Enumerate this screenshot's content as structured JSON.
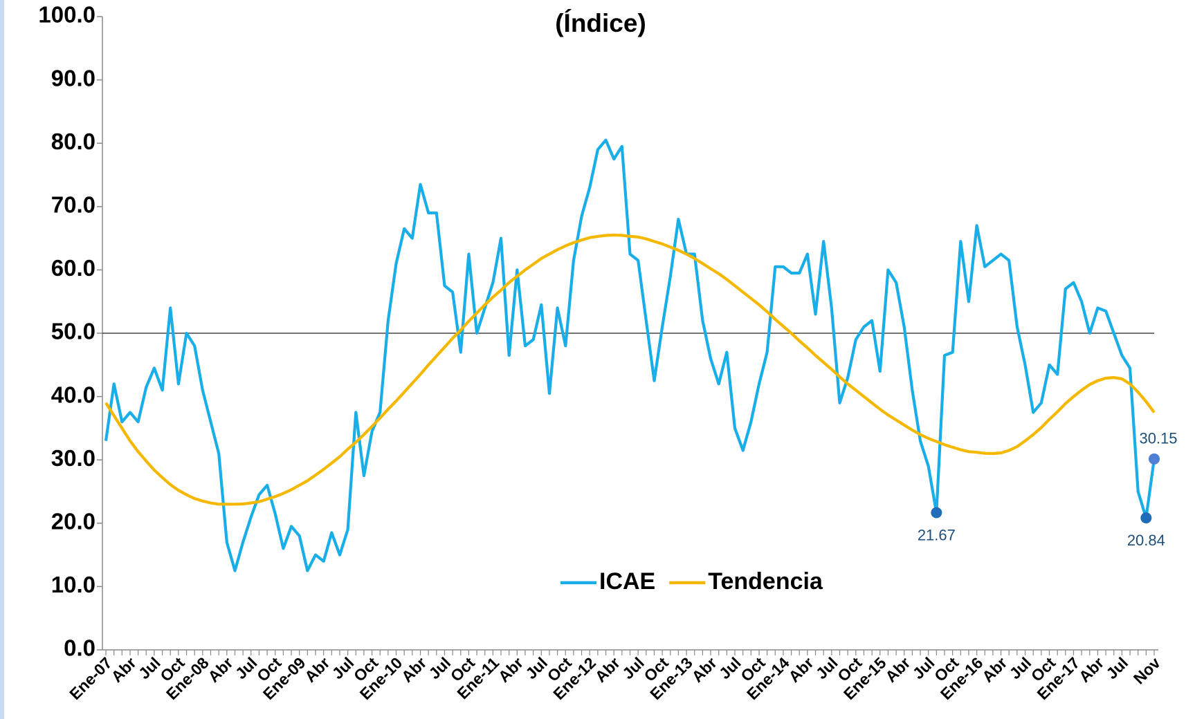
{
  "chart_data": {
    "type": "line",
    "title": "(Índice)",
    "categories": [
      "Ene-07",
      null,
      null,
      "Abr",
      null,
      null,
      "Jul",
      null,
      null,
      "Oct",
      null,
      null,
      "Ene-08",
      null,
      null,
      "Abr",
      null,
      null,
      "Jul",
      null,
      null,
      "Oct",
      null,
      null,
      "Ene-09",
      null,
      null,
      "Abr",
      null,
      null,
      "Jul",
      null,
      null,
      "Oct",
      null,
      null,
      "Ene-10",
      null,
      null,
      "Abr",
      null,
      null,
      "Jul",
      null,
      null,
      "Oct",
      null,
      null,
      "Ene-11",
      null,
      null,
      "Abr",
      null,
      null,
      "Jul",
      null,
      null,
      "Oct",
      null,
      null,
      "Ene-12",
      null,
      null,
      "Abr",
      null,
      null,
      "Jul",
      null,
      null,
      "Oct",
      null,
      null,
      "Ene-13",
      null,
      null,
      "Abr",
      null,
      null,
      "Jul",
      null,
      null,
      "Oct",
      null,
      null,
      "Ene-14",
      null,
      null,
      "Abr",
      null,
      null,
      "Jul",
      null,
      null,
      "Oct",
      null,
      null,
      "Ene-15",
      null,
      null,
      "Abr",
      null,
      null,
      "Jul",
      null,
      null,
      "Oct",
      null,
      null,
      "Ene-16",
      null,
      null,
      "Abr",
      null,
      null,
      "Jul",
      null,
      null,
      "Oct",
      null,
      null,
      "Ene-17",
      null,
      null,
      "Abr",
      null,
      null,
      "Jul",
      null,
      null,
      null,
      "Nov"
    ],
    "series": [
      {
        "name": "ICAE",
        "color": "#1aaee8",
        "values": [
          33,
          42,
          36,
          37.5,
          36,
          41.5,
          44.5,
          41,
          54,
          42,
          50,
          48,
          41,
          36,
          31,
          17,
          12.5,
          17,
          21,
          24.5,
          26,
          21.5,
          16,
          19.5,
          18,
          12.5,
          15,
          14,
          18.5,
          15,
          19,
          37.5,
          27.5,
          34.5,
          37.5,
          52,
          61,
          66.5,
          65,
          73.5,
          69,
          69,
          57.5,
          56.5,
          47,
          62.5,
          50,
          54,
          58,
          65,
          46.5,
          60,
          48,
          49,
          54.5,
          40.5,
          54,
          48,
          61.5,
          68.5,
          73,
          79,
          80.5,
          77.5,
          79.5,
          62.5,
          61.5,
          52,
          42.5,
          51,
          59,
          68,
          62.5,
          62.5,
          52,
          46,
          42,
          47,
          35,
          31.5,
          36,
          42,
          47,
          60.5,
          60.5,
          59.5,
          59.5,
          62.5,
          53,
          64.5,
          54,
          39,
          43,
          49,
          51,
          52,
          44,
          60,
          58,
          51,
          41,
          33,
          29,
          21.67,
          46.5,
          47,
          64.5,
          55,
          67,
          60.5,
          61.5,
          62.5,
          61.5,
          51,
          45,
          37.5,
          39,
          45,
          43.5,
          57,
          58,
          55,
          50,
          54,
          53.5,
          50,
          46.5,
          44.5,
          25,
          20.84,
          30.15
        ]
      },
      {
        "name": "Tendencia",
        "color": "#f5b800",
        "values": [
          39,
          37,
          35,
          33,
          31.3,
          29.8,
          28.4,
          27.2,
          26.1,
          25.2,
          24.5,
          23.9,
          23.5,
          23.2,
          23.0,
          23.0,
          23.0,
          23.05,
          23.2,
          23.4,
          23.8,
          24.2,
          24.7,
          25.3,
          26.0,
          26.7,
          27.6,
          28.5,
          29.5,
          30.5,
          31.7,
          32.8,
          34.0,
          35.3,
          36.6,
          38.0,
          39.3,
          40.7,
          42.1,
          43.5,
          45.0,
          46.4,
          47.8,
          49.2,
          50.5,
          51.9,
          53.2,
          54.5,
          55.7,
          56.8,
          58.0,
          59.0,
          60.0,
          60.9,
          61.8,
          62.5,
          63.2,
          63.8,
          64.3,
          64.7,
          65.1,
          65.3,
          65.45,
          65.5,
          65.46,
          65.3,
          65.2,
          64.9,
          64.5,
          64.1,
          63.6,
          63.1,
          62.5,
          61.8,
          61.0,
          60.2,
          59.4,
          58.5,
          57.5,
          56.5,
          55.5,
          54.5,
          53.4,
          52.2,
          51.1,
          50.0,
          48.8,
          47.7,
          46.5,
          45.4,
          44.3,
          43.1,
          42.0,
          41.0,
          40.0,
          39.0,
          38.0,
          37.1,
          36.3,
          35.5,
          34.7,
          34.0,
          33.4,
          32.9,
          32.4,
          32.0,
          31.6,
          31.3,
          31.2,
          31.04,
          31.0,
          31.1,
          31.5,
          32.1,
          33.0,
          34.0,
          35.1,
          36.4,
          37.6,
          38.9,
          40.0,
          41.0,
          41.9,
          42.5,
          42.9,
          43.0,
          42.8,
          42.0,
          40.7,
          39.2,
          37.5
        ]
      }
    ],
    "markers": [
      {
        "index": 103,
        "color": "#1f6db8"
      },
      {
        "index": 129,
        "color": "#1f6db8"
      },
      {
        "index": 130,
        "color": "#4f7fd6"
      }
    ],
    "reference_line": 50,
    "ylim": [
      0,
      100
    ],
    "yticks": [
      {
        "value": 0,
        "label": "0.0"
      },
      {
        "value": 10,
        "label": "10.0"
      },
      {
        "value": 20,
        "label": "20.0"
      },
      {
        "value": 30,
        "label": "30.0"
      },
      {
        "value": 40,
        "label": "40.0"
      },
      {
        "value": 50,
        "label": "50.0"
      },
      {
        "value": 60,
        "label": "60.0"
      },
      {
        "value": 70,
        "label": "70.0"
      },
      {
        "value": 80,
        "label": "80.0"
      },
      {
        "value": 90,
        "label": "90.0"
      },
      {
        "value": 100,
        "label": "100.0"
      }
    ],
    "grid": false,
    "legend": "inside-bottom-center"
  }
}
